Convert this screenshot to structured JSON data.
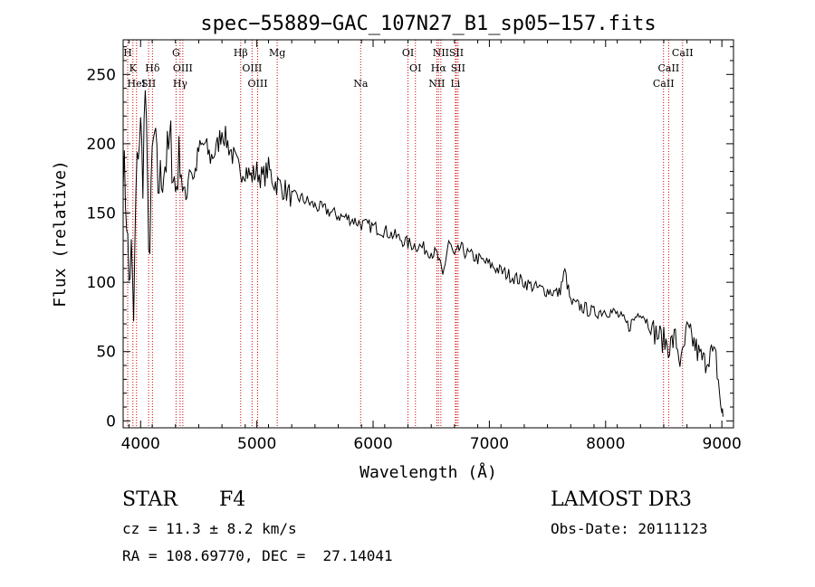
{
  "chart_data": {
    "type": "line",
    "title": "spec−55889−GAC_107N27_B1_sp05−157.fits",
    "xlabel": "Wavelength (Å)",
    "ylabel": "Flux (relative)",
    "xlim": [
      3850,
      9100
    ],
    "ylim": [
      -5,
      275
    ],
    "xticks": [
      4000,
      5000,
      6000,
      7000,
      8000,
      9000
    ],
    "yticks": [
      0,
      50,
      100,
      150,
      200,
      250
    ],
    "grid": false,
    "series": [
      {
        "name": "spectrum",
        "x": [
          3850,
          3880,
          3900,
          3920,
          3940,
          3960,
          3980,
          4000,
          4020,
          4040,
          4060,
          4080,
          4100,
          4120,
          4150,
          4180,
          4200,
          4230,
          4260,
          4300,
          4340,
          4380,
          4420,
          4460,
          4500,
          4550,
          4600,
          4650,
          4700,
          4750,
          4800,
          4850,
          4900,
          4950,
          5000,
          5050,
          5100,
          5150,
          5200,
          5300,
          5400,
          5500,
          5600,
          5700,
          5800,
          5900,
          6000,
          6100,
          6200,
          6300,
          6400,
          6500,
          6550,
          6600,
          6650,
          6700,
          6750,
          6800,
          6900,
          7000,
          7100,
          7200,
          7300,
          7400,
          7500,
          7600,
          7650,
          7700,
          7800,
          7900,
          8000,
          8100,
          8200,
          8300,
          8400,
          8500,
          8550,
          8600,
          8650,
          8700,
          8750,
          8800,
          8850,
          8900,
          8950,
          9000,
          9010
        ],
        "y": [
          190,
          150,
          100,
          120,
          70,
          160,
          200,
          210,
          180,
          240,
          160,
          120,
          190,
          205,
          170,
          175,
          185,
          190,
          200,
          165,
          195,
          150,
          185,
          175,
          195,
          200,
          190,
          195,
          210,
          200,
          190,
          180,
          182,
          176,
          180,
          175,
          182,
          172,
          170,
          162,
          160,
          155,
          152,
          148,
          146,
          142,
          140,
          137,
          133,
          128,
          126,
          122,
          120,
          104,
          130,
          118,
          125,
          121,
          117,
          113,
          108,
          104,
          100,
          96,
          94,
          92,
          108,
          85,
          82,
          78,
          80,
          77,
          68,
          80,
          66,
          58,
          54,
          60,
          40,
          65,
          58,
          48,
          42,
          50,
          44,
          5,
          3
        ]
      }
    ],
    "line_labels": [
      {
        "label": "H",
        "wavelength": 3889
      },
      {
        "label": "K",
        "wavelength": 3934
      },
      {
        "label": "HeI",
        "wavelength": 3965
      },
      {
        "label": "SII",
        "wavelength": 4069
      },
      {
        "label": "Hδ",
        "wavelength": 4102
      },
      {
        "label": "G",
        "wavelength": 4305
      },
      {
        "label": "OIII",
        "wavelength": 4363
      },
      {
        "label": "Hγ",
        "wavelength": 4340
      },
      {
        "label": "Hβ",
        "wavelength": 4861
      },
      {
        "label": "OIII",
        "wavelength": 4959
      },
      {
        "label": "OIII",
        "wavelength": 5007
      },
      {
        "label": "Mg",
        "wavelength": 5175
      },
      {
        "label": "Na",
        "wavelength": 5893
      },
      {
        "label": "OI",
        "wavelength": 6300
      },
      {
        "label": "OI",
        "wavelength": 6364
      },
      {
        "label": "NII",
        "wavelength": 6548
      },
      {
        "label": "Hα",
        "wavelength": 6563
      },
      {
        "label": "NII",
        "wavelength": 6583
      },
      {
        "label": "SII",
        "wavelength": 6716
      },
      {
        "label": "SII",
        "wavelength": 6731
      },
      {
        "label": "Li",
        "wavelength": 6708
      },
      {
        "label": "CaII",
        "wavelength": 8498
      },
      {
        "label": "CaII",
        "wavelength": 8542
      },
      {
        "label": "CaII",
        "wavelength": 8662
      }
    ],
    "line_marker_color": "#cc0000"
  },
  "info": {
    "object_class": "STAR",
    "subclass": "F4",
    "survey": "LAMOST DR3",
    "velocity": "cz = 11.3 ± 8.2 km/s",
    "obs_date": "Obs-Date: 20111123",
    "coords": "RA = 108.69770, DEC =  27.14041"
  }
}
